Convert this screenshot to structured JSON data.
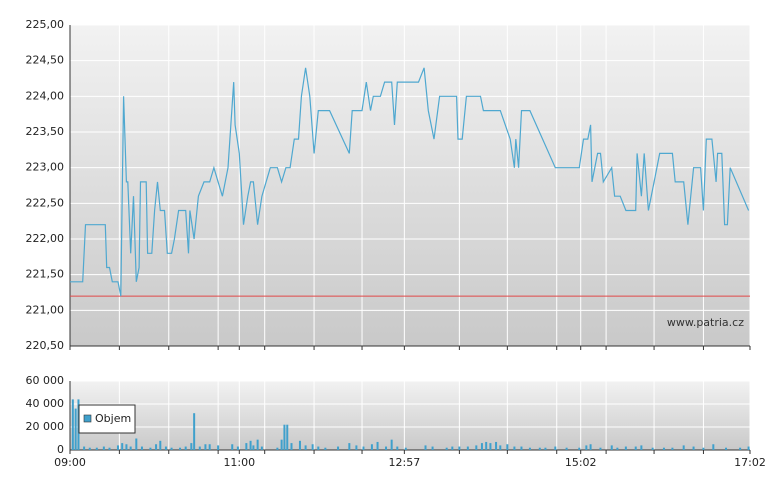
{
  "chart_data": [
    {
      "type": "line",
      "color": "#4fa8d0",
      "x": [
        540,
        549,
        551,
        565,
        566,
        568,
        570,
        574,
        576,
        578,
        580,
        581,
        583,
        585,
        587,
        589,
        590,
        594,
        595,
        598,
        600,
        602,
        604,
        607,
        609,
        612,
        614,
        617,
        622,
        624,
        625,
        628,
        631,
        635,
        639,
        642,
        645,
        648,
        652,
        656,
        657,
        660,
        663,
        666,
        668,
        670,
        673,
        676,
        679,
        682,
        687,
        690,
        693,
        696,
        699,
        702,
        704,
        707,
        710,
        713,
        716,
        724,
        738,
        740,
        747,
        750,
        753,
        755,
        760,
        763,
        768,
        770,
        772,
        787,
        791,
        794,
        798,
        802,
        814,
        815,
        818,
        821,
        831,
        833,
        845,
        852,
        855,
        856,
        858,
        860,
        866,
        884,
        901,
        904,
        907,
        909,
        910,
        914,
        916,
        918,
        924,
        926,
        930,
        934,
        941,
        942,
        945,
        947,
        950,
        954,
        958,
        967,
        969,
        975,
        978,
        979,
        982,
        987,
        989,
        991,
        995,
        998,
        999,
        1002,
        1004,
        1006,
        1008,
        1021
      ],
      "values": [
        221.4,
        221.4,
        222.2,
        222.2,
        221.6,
        221.6,
        221.4,
        221.4,
        221.2,
        224.0,
        222.8,
        222.8,
        221.8,
        222.6,
        221.4,
        221.6,
        222.8,
        222.8,
        221.8,
        221.8,
        222.4,
        222.8,
        222.4,
        222.4,
        221.8,
        221.8,
        222.0,
        222.4,
        222.4,
        221.8,
        222.4,
        222.0,
        222.6,
        222.8,
        222.8,
        223.0,
        222.8,
        222.6,
        223.0,
        224.2,
        223.6,
        223.2,
        222.2,
        222.6,
        222.8,
        222.8,
        222.2,
        222.6,
        222.8,
        223.0,
        223.0,
        222.8,
        223.0,
        223.0,
        223.4,
        223.4,
        224.0,
        224.4,
        224.0,
        223.2,
        223.8,
        223.8,
        223.2,
        223.8,
        223.8,
        224.2,
        223.8,
        224.0,
        224.0,
        224.2,
        224.2,
        223.6,
        224.2,
        224.2,
        224.4,
        223.8,
        223.4,
        224.0,
        224.0,
        223.4,
        223.4,
        224.0,
        224.0,
        223.8,
        223.8,
        223.4,
        223.0,
        223.4,
        223.0,
        223.8,
        223.8,
        223.0,
        223.0,
        223.4,
        223.4,
        223.6,
        222.8,
        223.2,
        223.2,
        222.8,
        223.0,
        222.6,
        222.6,
        222.4,
        222.4,
        223.2,
        222.6,
        223.2,
        222.4,
        222.8,
        223.2,
        223.2,
        222.8,
        222.8,
        222.2,
        222.4,
        223.0,
        223.0,
        222.4,
        223.4,
        223.4,
        222.8,
        223.2,
        223.2,
        222.2,
        222.2,
        223.0,
        222.4
      ],
      "reference_line": {
        "value": 221.2,
        "color": "#e04848"
      },
      "xlim": [
        540,
        1022
      ],
      "ylim": [
        220.5,
        225
      ],
      "yticks": [
        {
          "value": 220.5,
          "label": "220,50"
        },
        {
          "value": 221,
          "label": "221,00"
        },
        {
          "value": 221.5,
          "label": "221,50"
        },
        {
          "value": 222,
          "label": "222,00"
        },
        {
          "value": 222.5,
          "label": "222,50"
        },
        {
          "value": 223,
          "label": "223,00"
        },
        {
          "value": 223.5,
          "label": "223,50"
        },
        {
          "value": 224,
          "label": "224,00"
        },
        {
          "value": 224.5,
          "label": "224,50"
        },
        {
          "value": 225,
          "label": "225,00"
        }
      ],
      "grid": true,
      "watermark": "www.patria.cz"
    },
    {
      "type": "bar",
      "x": [
        542,
        544,
        546,
        550,
        554,
        559,
        564,
        568,
        574,
        577,
        580,
        583,
        587,
        591,
        597,
        601,
        604,
        608,
        612,
        618,
        622,
        626,
        628,
        632,
        636,
        639,
        645,
        655,
        659,
        665,
        668,
        670,
        673,
        676,
        687,
        690,
        692,
        694,
        697,
        703,
        707,
        712,
        716,
        721,
        730,
        738,
        743,
        748,
        754,
        758,
        764,
        768,
        772,
        778,
        792,
        797,
        807,
        811,
        816,
        822,
        828,
        832,
        835,
        838,
        842,
        845,
        850,
        855,
        860,
        866,
        873,
        877,
        884,
        892,
        901,
        906,
        909,
        916,
        924,
        928,
        934,
        941,
        945,
        953,
        961,
        967,
        975,
        982,
        989,
        996,
        1005,
        1015,
        1021
      ],
      "series": [
        {
          "name": "Objem",
          "color": "#3fa0cc",
          "values": [
            44000,
            36000,
            44000,
            3000,
            2000,
            2000,
            3000,
            2000,
            4000,
            6000,
            5000,
            3000,
            10000,
            3000,
            2000,
            5000,
            8000,
            3000,
            2000,
            2000,
            3000,
            6000,
            32000,
            3000,
            5000,
            5000,
            4000,
            5000,
            3000,
            6000,
            8000,
            4000,
            9000,
            3000,
            2000,
            9000,
            22000,
            22000,
            6000,
            8000,
            4000,
            5000,
            3000,
            2000,
            3000,
            6000,
            4000,
            3000,
            5000,
            7000,
            3000,
            9000,
            3000,
            2000,
            4000,
            3000,
            2000,
            3000,
            3000,
            3000,
            4000,
            6000,
            7000,
            6000,
            7000,
            4000,
            5000,
            3000,
            3000,
            2000,
            2000,
            2000,
            3000,
            2000,
            2000,
            4000,
            5000,
            2000,
            4000,
            2000,
            3000,
            3000,
            4000,
            2000,
            2000,
            2000,
            4000,
            3000,
            2000,
            5000,
            2000,
            2000,
            3000
          ]
        }
      ],
      "xlim": [
        540,
        1022
      ],
      "xticks": [
        {
          "value": 540,
          "label": "09:00"
        },
        {
          "value": 660,
          "label": "11:00"
        },
        {
          "value": 777,
          "label": "12:57"
        },
        {
          "value": 902,
          "label": "15:02"
        },
        {
          "value": 1022,
          "label": "17:02"
        }
      ],
      "xminorticks": [
        575,
        610,
        645,
        678,
        713,
        747,
        816,
        850,
        885,
        920,
        954,
        989
      ],
      "ylim": [
        0,
        60000
      ],
      "yticks": [
        {
          "value": 0,
          "label": "0"
        },
        {
          "value": 20000,
          "label": "20 000"
        },
        {
          "value": 40000,
          "label": "40 000"
        },
        {
          "value": 60000,
          "label": "60 000"
        }
      ],
      "grid": true,
      "legend": "upper-left"
    }
  ]
}
